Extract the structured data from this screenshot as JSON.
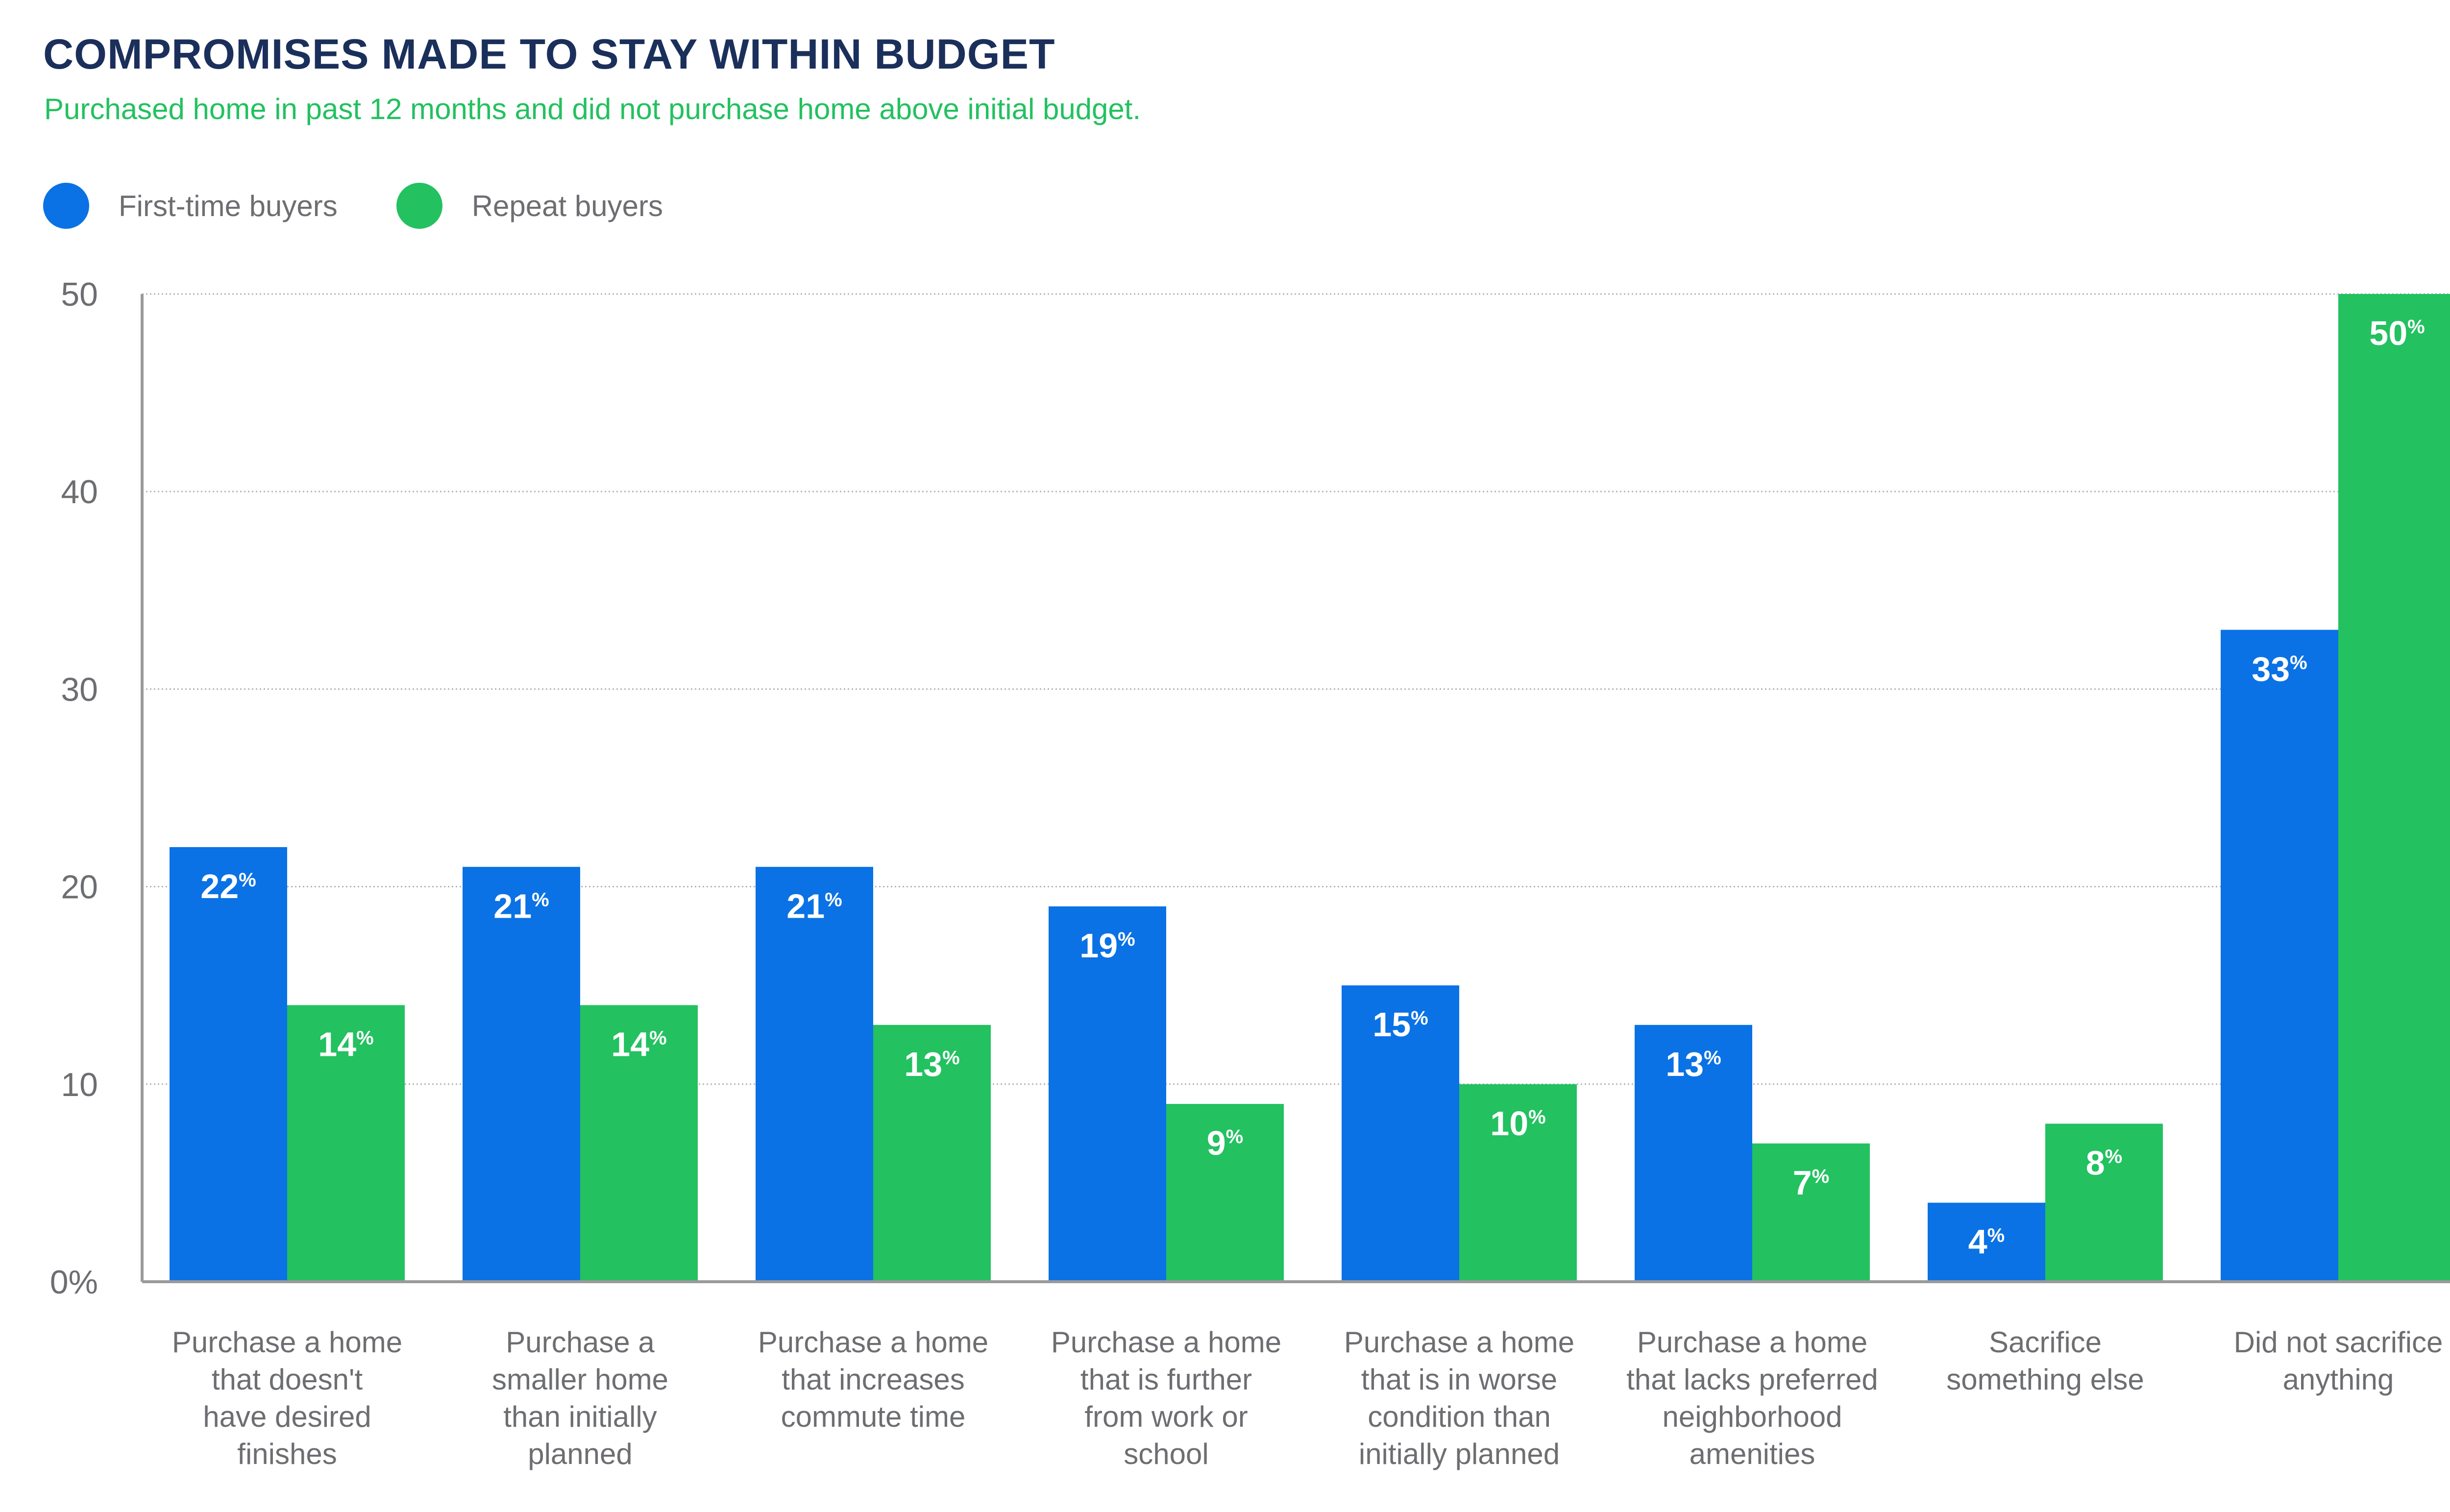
{
  "chart_data": {
    "type": "bar",
    "title": "COMPROMISES MADE TO STAY WITHIN BUDGET",
    "subtitle": "Purchased home in past 12 months and did not purchase home above initial budget.",
    "categories": [
      [
        "Purchase a home",
        "that doesn't",
        "have desired",
        "finishes"
      ],
      [
        "Purchase a",
        "smaller home",
        "than initially",
        "planned"
      ],
      [
        "Purchase a home",
        "that increases",
        "commute time"
      ],
      [
        "Purchase a home",
        "that is further",
        "from work or",
        "school"
      ],
      [
        "Purchase a home",
        "that is in worse",
        "condition than",
        "initially planned"
      ],
      [
        "Purchase a home",
        "that lacks preferred",
        "neighborhood",
        "amenities"
      ],
      [
        "Sacrifice",
        "something else"
      ],
      [
        "Did not sacrifice",
        "anything"
      ]
    ],
    "series": [
      {
        "name": "First-time buyers",
        "color": "#0a72e4",
        "values": [
          22,
          21,
          21,
          19,
          15,
          13,
          4,
          33
        ]
      },
      {
        "name": "Repeat buyers",
        "color": "#23c160",
        "values": [
          14,
          14,
          13,
          9,
          10,
          7,
          8,
          50
        ]
      }
    ],
    "y_ticks": [
      "0%",
      "10",
      "20",
      "30",
      "40",
      "50"
    ],
    "ylim": [
      0,
      50
    ],
    "data_label_unit": "%",
    "grid": true,
    "legend_position": "top-left"
  }
}
